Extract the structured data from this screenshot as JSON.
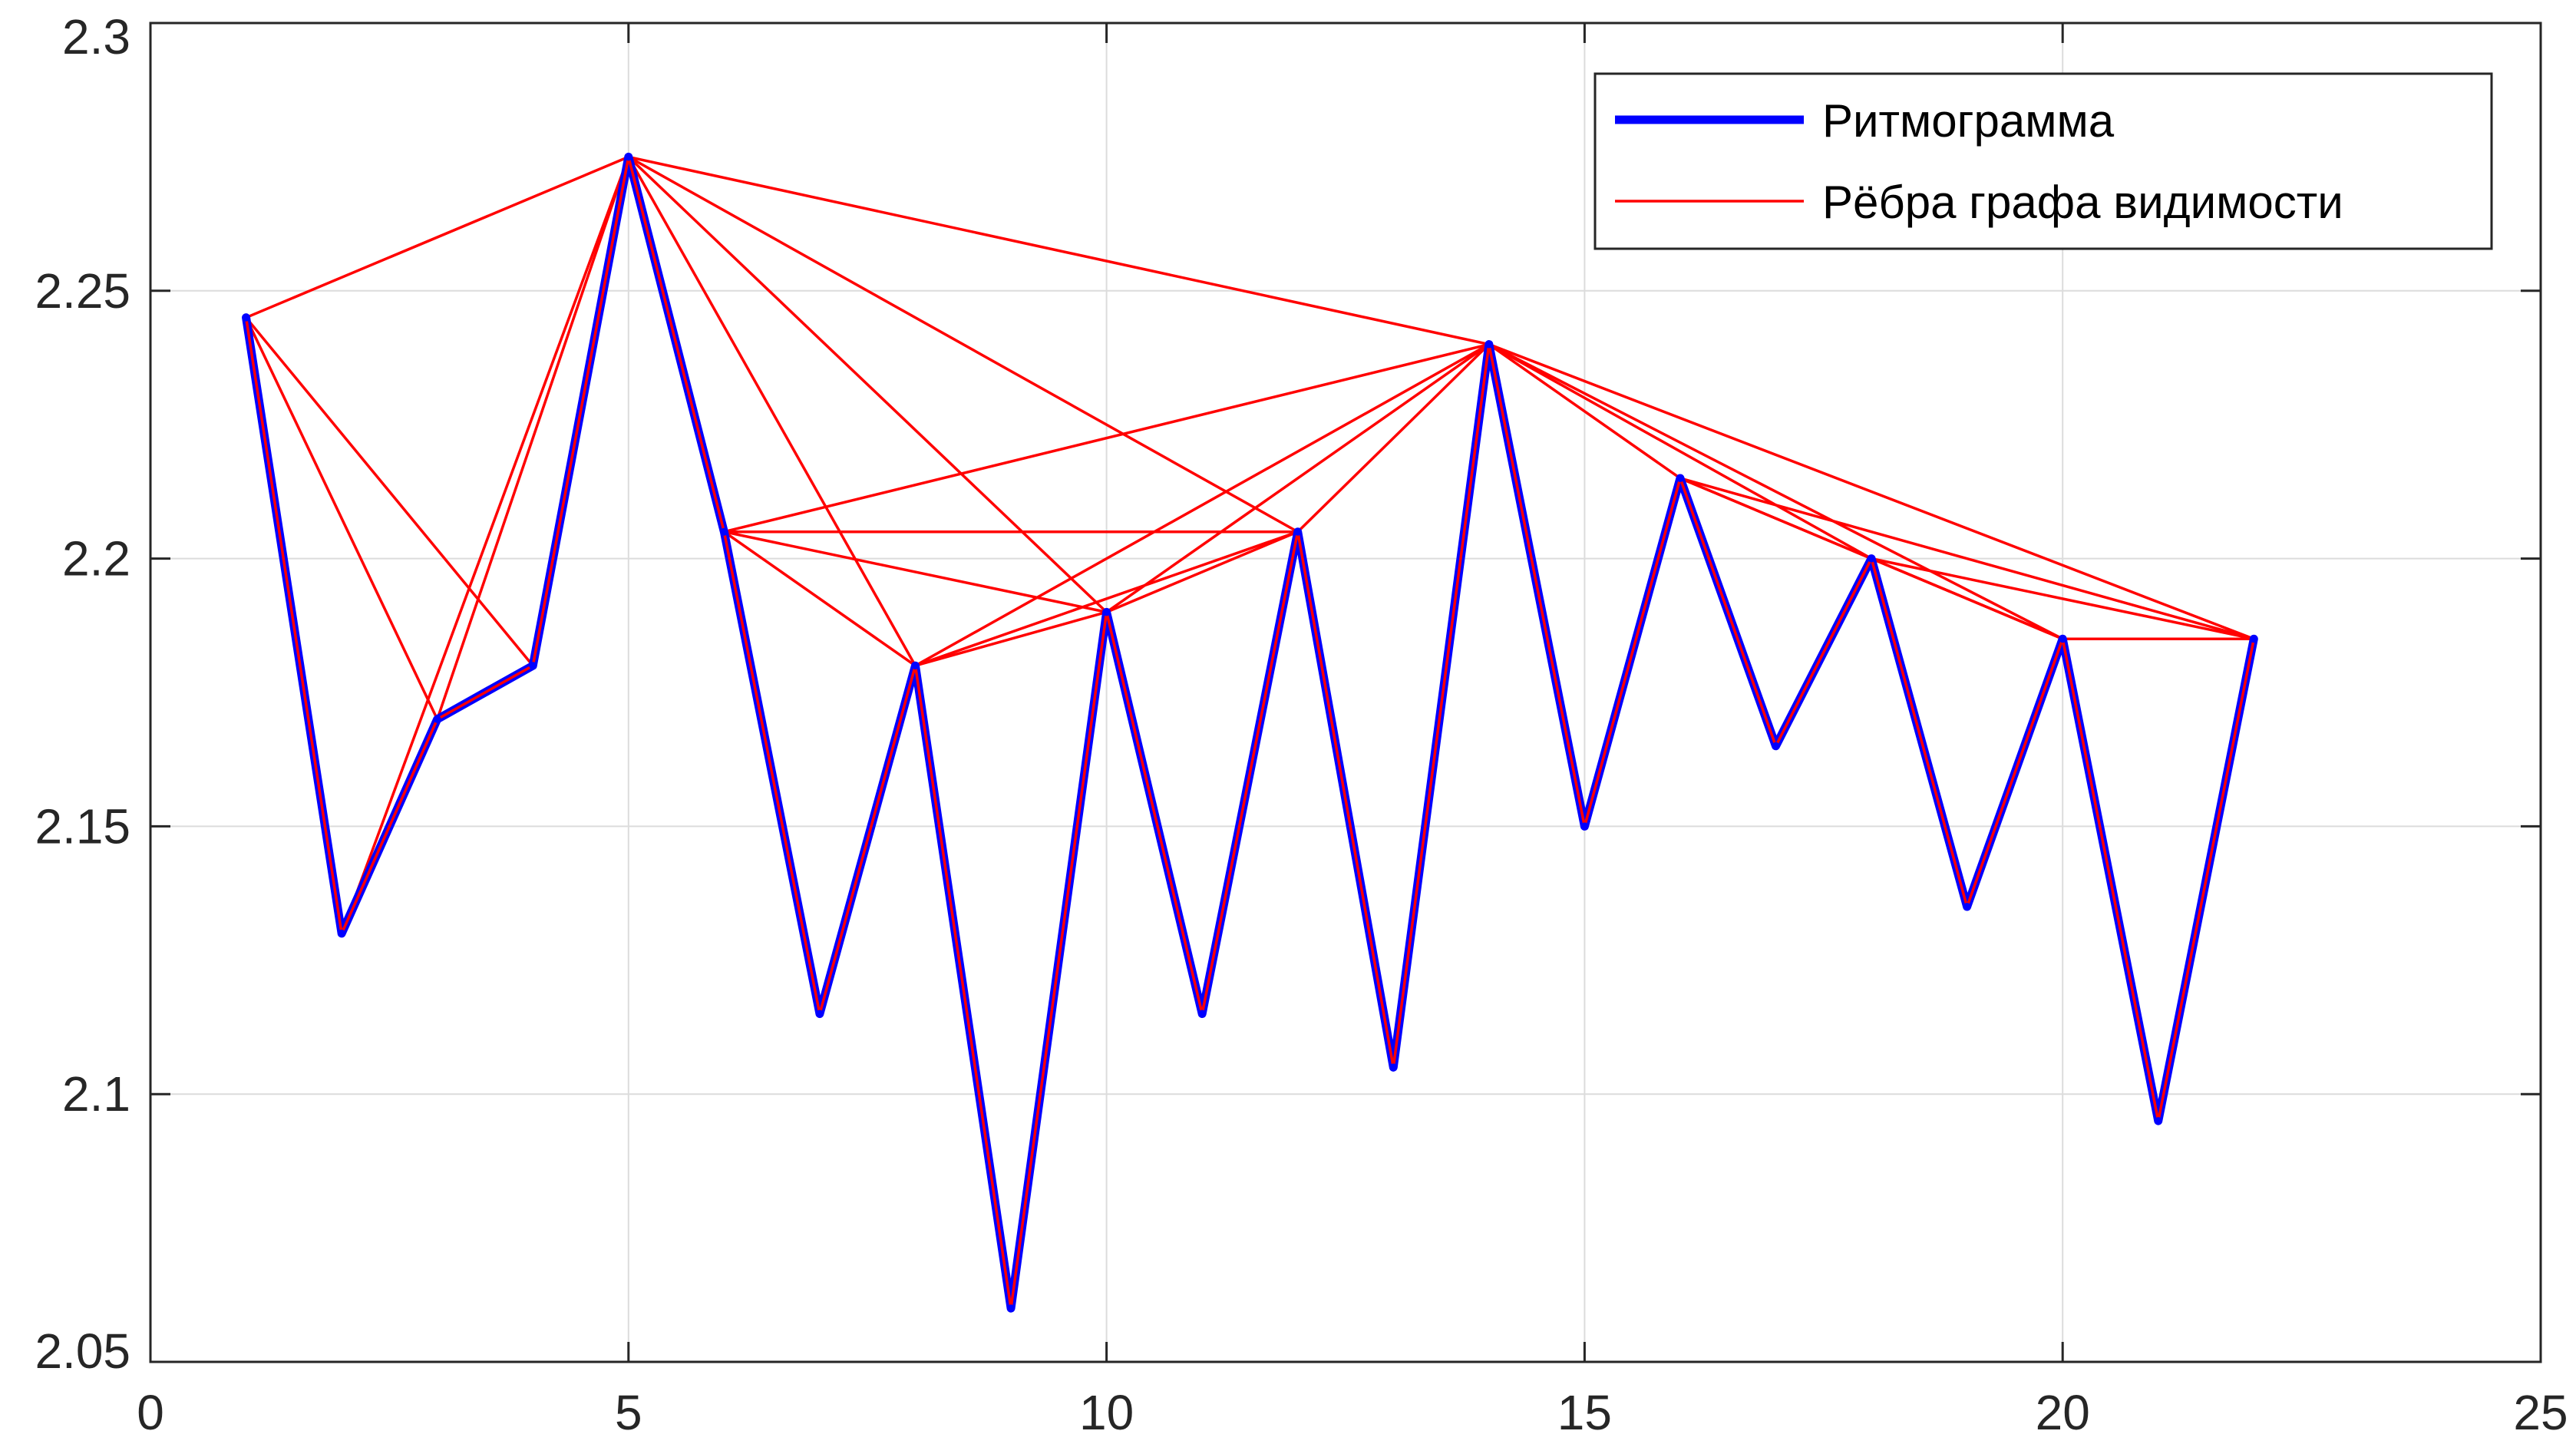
{
  "chart_data": {
    "type": "line",
    "title": "",
    "xlabel": "",
    "ylabel": "",
    "xlim": [
      0,
      25
    ],
    "ylim": [
      2.05,
      2.3
    ],
    "grid": true,
    "legend_position": "top-right",
    "x_ticks": [
      "0",
      "5",
      "10",
      "15",
      "20",
      "25"
    ],
    "y_ticks": [
      "2.05",
      "2.1",
      "2.15",
      "2.2",
      "2.25",
      "2.3"
    ],
    "series": [
      {
        "name": "Ритмограмма",
        "color": "#0000ff",
        "x": [
          1,
          2,
          3,
          4,
          5,
          6,
          7,
          8,
          9,
          10,
          11,
          12,
          13,
          14,
          15,
          16,
          17,
          18,
          19,
          20,
          21,
          22
        ],
        "y": [
          2.245,
          2.13,
          2.17,
          2.18,
          2.275,
          2.205,
          2.115,
          2.18,
          2.06,
          2.19,
          2.115,
          2.205,
          2.105,
          2.24,
          2.15,
          2.215,
          2.165,
          2.2,
          2.135,
          2.185,
          2.095,
          2.185
        ]
      },
      {
        "name": "Рёбра графа видимости",
        "color": "#ff0000",
        "edges": [
          [
            1,
            2
          ],
          [
            1,
            3
          ],
          [
            1,
            4
          ],
          [
            1,
            5
          ],
          [
            2,
            3
          ],
          [
            2,
            5
          ],
          [
            3,
            4
          ],
          [
            3,
            5
          ],
          [
            4,
            5
          ],
          [
            5,
            6
          ],
          [
            5,
            8
          ],
          [
            5,
            10
          ],
          [
            5,
            12
          ],
          [
            5,
            14
          ],
          [
            6,
            7
          ],
          [
            6,
            8
          ],
          [
            6,
            10
          ],
          [
            6,
            12
          ],
          [
            6,
            14
          ],
          [
            7,
            8
          ],
          [
            8,
            9
          ],
          [
            8,
            10
          ],
          [
            8,
            12
          ],
          [
            8,
            14
          ],
          [
            9,
            10
          ],
          [
            10,
            11
          ],
          [
            10,
            12
          ],
          [
            10,
            14
          ],
          [
            11,
            12
          ],
          [
            12,
            13
          ],
          [
            12,
            14
          ],
          [
            13,
            14
          ],
          [
            14,
            15
          ],
          [
            14,
            16
          ],
          [
            14,
            18
          ],
          [
            14,
            20
          ],
          [
            14,
            22
          ],
          [
            15,
            16
          ],
          [
            16,
            17
          ],
          [
            16,
            18
          ],
          [
            16,
            20
          ],
          [
            16,
            22
          ],
          [
            17,
            18
          ],
          [
            18,
            19
          ],
          [
            18,
            20
          ],
          [
            18,
            22
          ],
          [
            19,
            20
          ],
          [
            20,
            21
          ],
          [
            20,
            22
          ],
          [
            21,
            22
          ]
        ]
      }
    ]
  }
}
